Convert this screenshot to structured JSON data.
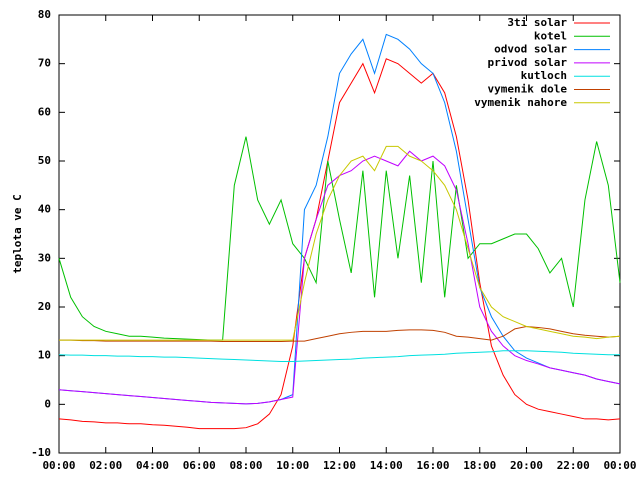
{
  "chart_data": {
    "type": "line",
    "ylabel": "teplota ve C",
    "legend": "top-right",
    "grid": false,
    "xlim": [
      0,
      24
    ],
    "xticks": [
      {
        "value": 0,
        "label": "00:00"
      },
      {
        "value": 2,
        "label": "02:00"
      },
      {
        "value": 4,
        "label": "04:00"
      },
      {
        "value": 6,
        "label": "06:00"
      },
      {
        "value": 8,
        "label": "08:00"
      },
      {
        "value": 10,
        "label": "10:00"
      },
      {
        "value": 12,
        "label": "12:00"
      },
      {
        "value": 14,
        "label": "14:00"
      },
      {
        "value": 16,
        "label": "16:00"
      },
      {
        "value": 18,
        "label": "18:00"
      },
      {
        "value": 20,
        "label": "20:00"
      },
      {
        "value": 22,
        "label": "22:00"
      },
      {
        "value": 24,
        "label": "00:00"
      }
    ],
    "ylim": [
      -10,
      80
    ],
    "yticks": [
      -10,
      0,
      10,
      20,
      30,
      40,
      50,
      60,
      70,
      80
    ],
    "x": [
      0,
      0.5,
      1,
      1.5,
      2,
      2.5,
      3,
      3.5,
      4,
      4.5,
      5,
      5.5,
      6,
      6.5,
      7,
      7.5,
      8,
      8.5,
      9,
      9.5,
      10,
      10.5,
      11,
      11.5,
      12,
      12.5,
      13,
      13.5,
      14,
      14.5,
      15,
      15.5,
      16,
      16.5,
      17,
      17.5,
      18,
      18.5,
      19,
      19.5,
      20,
      20.5,
      21,
      21.5,
      22,
      22.5,
      23,
      23.5,
      24
    ],
    "series": [
      {
        "name": "3ti solar",
        "color": "#ff0000",
        "values": [
          -3,
          -3.2,
          -3.5,
          -3.6,
          -3.8,
          -3.8,
          -4,
          -4,
          -4.2,
          -4.3,
          -4.5,
          -4.7,
          -5,
          -5,
          -5,
          -5,
          -4.8,
          -4,
          -2,
          2,
          12,
          30,
          38,
          50,
          62,
          66,
          70,
          64,
          71,
          70,
          68,
          66,
          68,
          64,
          55,
          42,
          25,
          12,
          6,
          2,
          0,
          -1,
          -1.5,
          -2,
          -2.5,
          -3,
          -3,
          -3.2,
          -3
        ]
      },
      {
        "name": "kotel",
        "color": "#00c000",
        "values": [
          30,
          22,
          18,
          16,
          15,
          14.5,
          14,
          14,
          13.8,
          13.6,
          13.5,
          13.4,
          13.3,
          13.2,
          13.2,
          45,
          55,
          42,
          37,
          42,
          33,
          30,
          25,
          50,
          38,
          27,
          48,
          22,
          48,
          30,
          47,
          25,
          50,
          22,
          45,
          30,
          33,
          33,
          34,
          35,
          35,
          32,
          27,
          30,
          20,
          42,
          54,
          45,
          25
        ]
      },
      {
        "name": "odvod solar",
        "color": "#0080ff",
        "values": [
          3,
          2.8,
          2.6,
          2.4,
          2.2,
          2,
          1.8,
          1.6,
          1.4,
          1.2,
          1,
          0.8,
          0.6,
          0.4,
          0.3,
          0.2,
          0.1,
          0.2,
          0.5,
          1,
          2,
          40,
          45,
          55,
          68,
          72,
          75,
          68,
          76,
          75,
          73,
          70,
          68,
          62,
          52,
          38,
          24,
          18,
          14,
          11,
          9.5,
          8.5,
          7.5,
          7,
          6.5,
          6,
          5.2,
          4.7,
          4.2
        ]
      },
      {
        "name": "privod solar",
        "color": "#c000ff",
        "values": [
          3,
          2.8,
          2.6,
          2.4,
          2.2,
          2,
          1.8,
          1.6,
          1.4,
          1.2,
          1,
          0.8,
          0.6,
          0.4,
          0.3,
          0.2,
          0.1,
          0.2,
          0.5,
          1,
          1.5,
          30,
          38,
          45,
          47,
          48,
          50,
          51,
          50,
          49,
          52,
          50,
          51,
          49,
          44,
          33,
          20,
          15,
          12,
          10,
          9,
          8.3,
          7.5,
          7,
          6.5,
          6,
          5.2,
          4.7,
          4.2
        ]
      },
      {
        "name": "kutloch",
        "color": "#00e0e0",
        "values": [
          10.2,
          10.1,
          10.1,
          10,
          10,
          9.9,
          9.9,
          9.8,
          9.8,
          9.7,
          9.7,
          9.6,
          9.5,
          9.4,
          9.3,
          9.2,
          9.1,
          9,
          8.9,
          8.8,
          8.8,
          8.9,
          9,
          9.1,
          9.2,
          9.3,
          9.5,
          9.6,
          9.7,
          9.8,
          10,
          10.1,
          10.2,
          10.3,
          10.5,
          10.6,
          10.7,
          10.8,
          11,
          11,
          11,
          10.9,
          10.8,
          10.7,
          10.5,
          10.4,
          10.3,
          10.2,
          10.2
        ]
      },
      {
        "name": "vymenik dole",
        "color": "#c04000",
        "values": [
          13.2,
          13.2,
          13.1,
          13.1,
          13,
          13,
          13,
          13,
          13,
          13,
          13,
          13,
          13,
          13,
          12.9,
          12.9,
          12.9,
          12.9,
          12.9,
          12.9,
          13,
          13,
          13.5,
          14,
          14.5,
          14.8,
          15,
          15,
          15,
          15.2,
          15.3,
          15.3,
          15.2,
          14.8,
          14,
          13.8,
          13.5,
          13.2,
          14,
          15.5,
          16,
          15.8,
          15.5,
          15,
          14.5,
          14.2,
          14,
          13.8,
          14
        ]
      },
      {
        "name": "vymenik nahore",
        "color": "#c8c800",
        "values": [
          13.2,
          13.2,
          13.2,
          13.2,
          13.2,
          13.2,
          13.2,
          13.2,
          13.2,
          13.2,
          13.2,
          13.2,
          13.2,
          13.2,
          13.2,
          13.2,
          13.2,
          13.2,
          13.2,
          13.2,
          13.2,
          25,
          35,
          42,
          47,
          50,
          51,
          48,
          53,
          53,
          51,
          50,
          48,
          45,
          40,
          32,
          24,
          20,
          18,
          17,
          16,
          15.5,
          15,
          14.5,
          14,
          13.8,
          13.5,
          13.8,
          14
        ]
      }
    ]
  }
}
